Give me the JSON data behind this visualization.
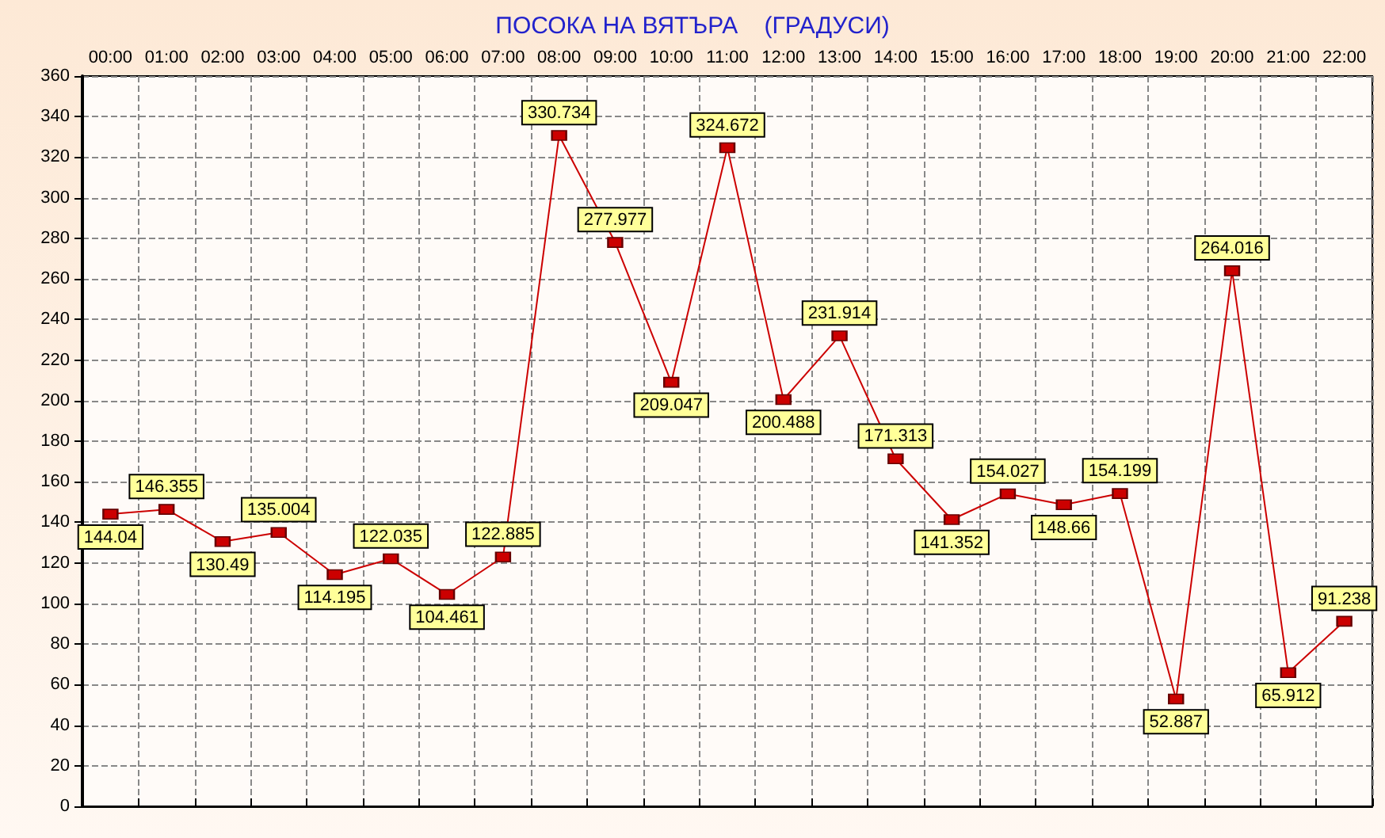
{
  "chart_data": {
    "type": "line",
    "title": "ПОСОКА НА ВЯТЪРА    (ГРАДУСИ)",
    "categories": [
      "00:00",
      "01:00",
      "02:00",
      "03:00",
      "04:00",
      "05:00",
      "06:00",
      "07:00",
      "08:00",
      "09:00",
      "10:00",
      "11:00",
      "12:00",
      "13:00",
      "14:00",
      "15:00",
      "16:00",
      "17:00",
      "18:00",
      "19:00",
      "20:00",
      "21:00",
      "22:00"
    ],
    "series": [
      {
        "color": "#cc0000",
        "values": [
          144.04,
          146.355,
          130.49,
          135.004,
          114.195,
          122.035,
          104.461,
          122.885,
          330.734,
          277.977,
          209.047,
          324.672,
          200.488,
          231.914,
          171.313,
          141.352,
          154.027,
          148.66,
          154.199,
          52.887,
          264.016,
          65.912,
          91.238
        ]
      }
    ],
    "ylim": [
      0,
      360
    ],
    "yticks": [
      0,
      20,
      40,
      60,
      80,
      100,
      120,
      140,
      160,
      180,
      200,
      220,
      240,
      260,
      280,
      300,
      320,
      340,
      360
    ],
    "grid": true,
    "marker": "square",
    "line_style": "solid",
    "data_labels": true
  }
}
